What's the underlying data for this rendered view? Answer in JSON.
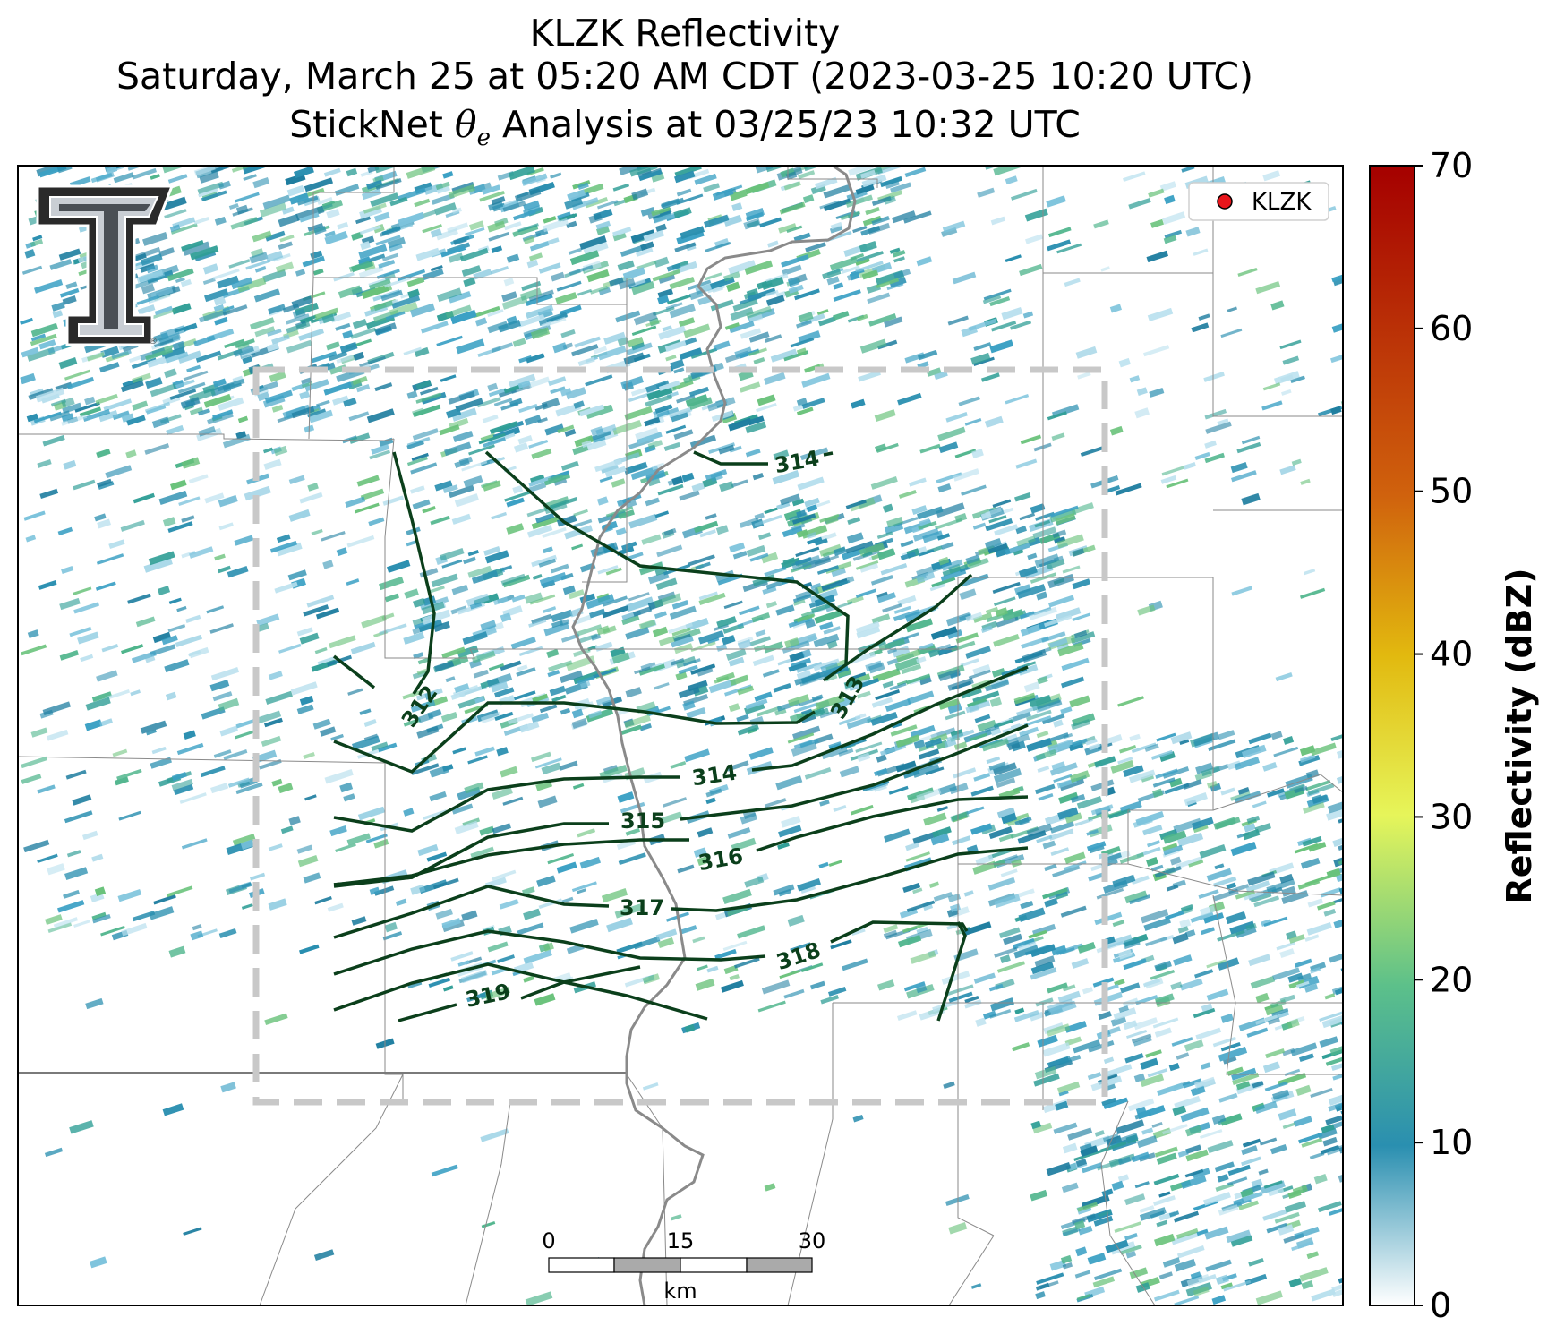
{
  "header": {
    "title_line1": "KLZK Reflectivity",
    "title_line2": "Saturday, March 25 at 05:20 AM CDT (2023-03-25 10:20 UTC)",
    "title_line3_prefix": "StickNet ",
    "title_line3_theta": "θ",
    "title_line3_sub": "e",
    "title_line3_suffix": " Analysis at 03/25/23 10:32 UTC"
  },
  "legend": {
    "station_label": "KLZK",
    "marker_color": "#e8151b"
  },
  "colorbar": {
    "label": "Reflectivity (dBZ)",
    "min": 0,
    "max": 70,
    "ticks": [
      "0",
      "10",
      "20",
      "30",
      "40",
      "50",
      "60",
      "70"
    ],
    "colors": [
      "#ffffff",
      "#2a8fb0",
      "#5cc08a",
      "#e6f55a",
      "#e2b90f",
      "#d0620d",
      "#a50000"
    ]
  },
  "contours": {
    "color": "#0b3f1b",
    "labels": [
      "312",
      "313",
      "314",
      "314",
      "315",
      "316",
      "317",
      "318",
      "319"
    ]
  },
  "scale_bar": {
    "tick_labels": [
      "0",
      "15",
      "30"
    ],
    "unit": "km"
  },
  "logo": {
    "icon": "texas-tech-double-t-logo"
  }
}
